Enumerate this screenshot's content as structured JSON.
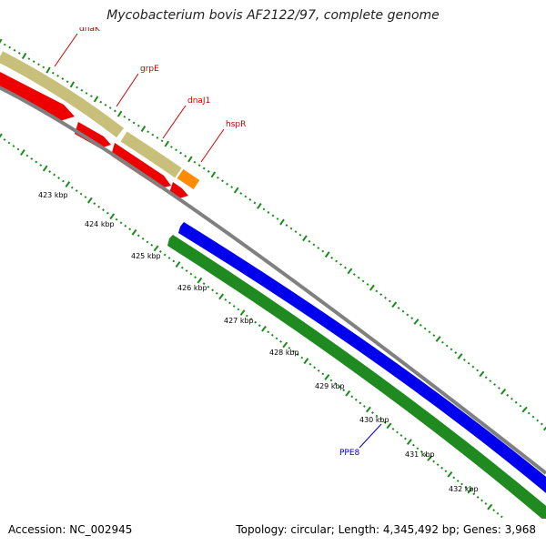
{
  "title": "Mycobacterium bovis AF2122/97, complete genome",
  "footer": {
    "accession": "Accession: NC_002945",
    "summary": "Topology: circular; Length: 4,345,492 bp; Genes: 3,968"
  },
  "scale": {
    "unit": "kbp",
    "ticks": [
      "423 kbp",
      "424 kbp",
      "425 kbp",
      "426 kbp",
      "427 kbp",
      "428 kbp",
      "429 kbp",
      "430 kbp",
      "431 kbp",
      "432 kbp"
    ]
  },
  "genes": [
    {
      "name": "dnaK",
      "color": "#cc0000",
      "track": "forward-cds"
    },
    {
      "name": "grpE",
      "color": "#cc0000",
      "track": "forward-cds"
    },
    {
      "name": "dnaJ1",
      "color": "#cc0000",
      "track": "forward-cds"
    },
    {
      "name": "hspR",
      "color": "#cc0000",
      "track": "forward-cds"
    },
    {
      "name": "PPE8",
      "color": "#0000cc",
      "track": "reverse-cds"
    }
  ],
  "colors": {
    "forward_cds": "#ee0000",
    "reverse_cds": "#0000ee",
    "forward_gene": "#c8c07a",
    "reverse_gene": "#1f8a1f",
    "other_feature": "#ff8c00",
    "backbone": "#808080",
    "ticks": "#1a8a1a"
  }
}
